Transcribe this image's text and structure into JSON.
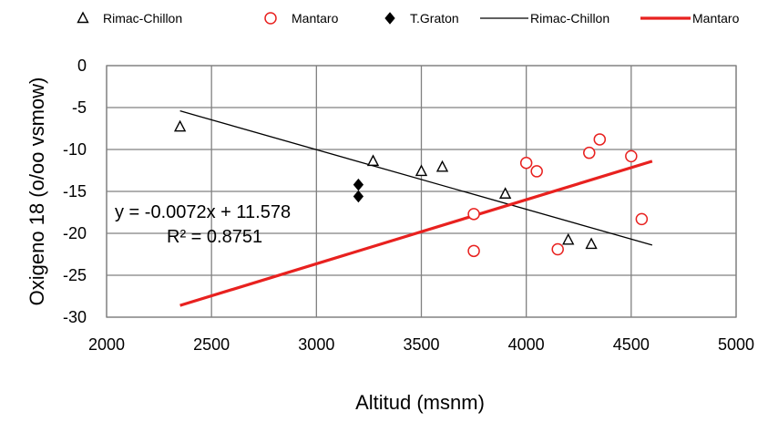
{
  "chart_data": {
    "type": "scatter",
    "title": "",
    "xlabel": "Altitud (msnm)",
    "ylabel": "Oxigeno 18 (o/oo vsmow)",
    "xlim": [
      2000,
      5000
    ],
    "ylim": [
      -30,
      0
    ],
    "x_ticks": [
      2000,
      2500,
      3000,
      3500,
      4000,
      4500,
      5000
    ],
    "y_ticks": [
      0,
      -5,
      -10,
      -15,
      -20,
      -25,
      -30
    ],
    "grid": true,
    "legend_position": "top",
    "legend": [
      {
        "label": "Rimac-Chillon",
        "kind": "marker-triangle"
      },
      {
        "label": "Mantaro",
        "kind": "marker-circle"
      },
      {
        "label": "T.Graton",
        "kind": "marker-diamond"
      },
      {
        "label": "Rimac-Chillon",
        "kind": "line-black"
      },
      {
        "label": "Mantaro",
        "kind": "line-red"
      }
    ],
    "series": [
      {
        "name": "Rimac-Chillon",
        "marker": "triangle",
        "color": "#000000",
        "points": [
          [
            2350,
            -7.3
          ],
          [
            3270,
            -11.4
          ],
          [
            3500,
            -12.6
          ],
          [
            3600,
            -12.1
          ],
          [
            3900,
            -15.3
          ],
          [
            4200,
            -20.8
          ],
          [
            4310,
            -21.3
          ]
        ]
      },
      {
        "name": "Mantaro",
        "marker": "circle",
        "color": "#e8211f",
        "points": [
          [
            3750,
            -17.7
          ],
          [
            3750,
            -22.1
          ],
          [
            4000,
            -11.6
          ],
          [
            4050,
            -12.6
          ],
          [
            4150,
            -21.9
          ],
          [
            4300,
            -10.4
          ],
          [
            4350,
            -8.8
          ],
          [
            4500,
            -10.8
          ],
          [
            4550,
            -18.3
          ]
        ]
      },
      {
        "name": "T.Graton",
        "marker": "diamond",
        "color": "#000000",
        "points": [
          [
            3200,
            -14.2
          ],
          [
            3200,
            -15.6
          ]
        ]
      }
    ],
    "trendlines": [
      {
        "name": "Rimac-Chillon",
        "color": "#000000",
        "width": 1.3,
        "x": [
          2350,
          4600
        ],
        "y": [
          -5.4,
          -21.4
        ]
      },
      {
        "name": "Mantaro",
        "color": "#e8211f",
        "width": 3.2,
        "x": [
          2350,
          4600
        ],
        "y": [
          -28.6,
          -11.4
        ]
      }
    ],
    "annotations": {
      "equation": "y = -0.0072x + 11.578",
      "r_squared": "R² = 0.8751"
    }
  }
}
